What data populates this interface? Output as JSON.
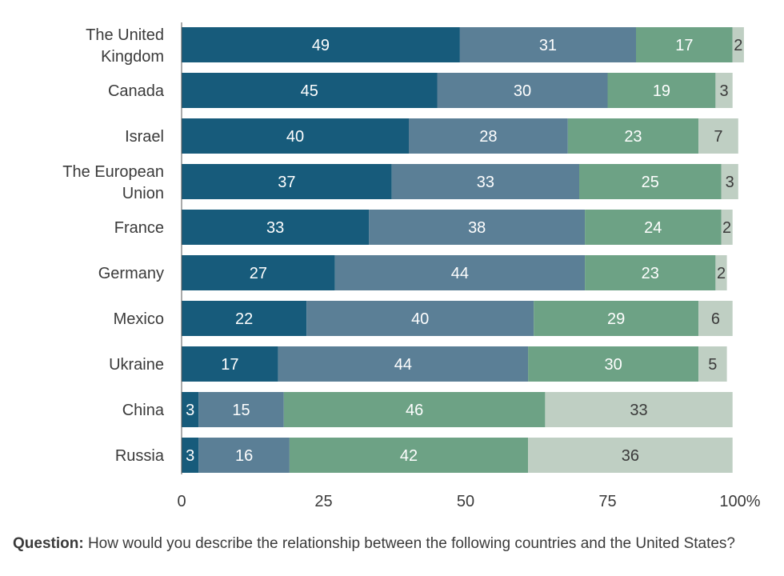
{
  "question": {
    "label": "Question:",
    "text": "How would you describe the relationship between the following countries and the United States?"
  },
  "colors": [
    "#175b7b",
    "#5b7f96",
    "#6da285",
    "#bfcfc3"
  ],
  "label_colors": [
    "#ffffff",
    "#ffffff",
    "#ffffff",
    "#3a3a3a"
  ],
  "chart_data": {
    "type": "bar",
    "orientation": "horizontal",
    "stacked": true,
    "categories": [
      "The United Kingdom",
      "Canada",
      "Israel",
      "The European Union",
      "France",
      "Germany",
      "Mexico",
      "Ukraine",
      "China",
      "Russia"
    ],
    "series": [
      {
        "values": [
          49,
          45,
          40,
          37,
          33,
          27,
          22,
          17,
          3,
          3
        ]
      },
      {
        "values": [
          31,
          30,
          28,
          33,
          38,
          44,
          40,
          44,
          15,
          16
        ]
      },
      {
        "values": [
          17,
          19,
          23,
          25,
          24,
          23,
          29,
          30,
          46,
          42
        ]
      },
      {
        "values": [
          2,
          3,
          7,
          3,
          2,
          2,
          6,
          5,
          33,
          36
        ]
      }
    ],
    "xlim": [
      0,
      100
    ],
    "xticks": [
      0,
      25,
      50,
      75,
      100
    ],
    "xtick_labels": [
      "0",
      "25",
      "50",
      "75",
      "100%"
    ],
    "grid": false,
    "legend": false
  }
}
